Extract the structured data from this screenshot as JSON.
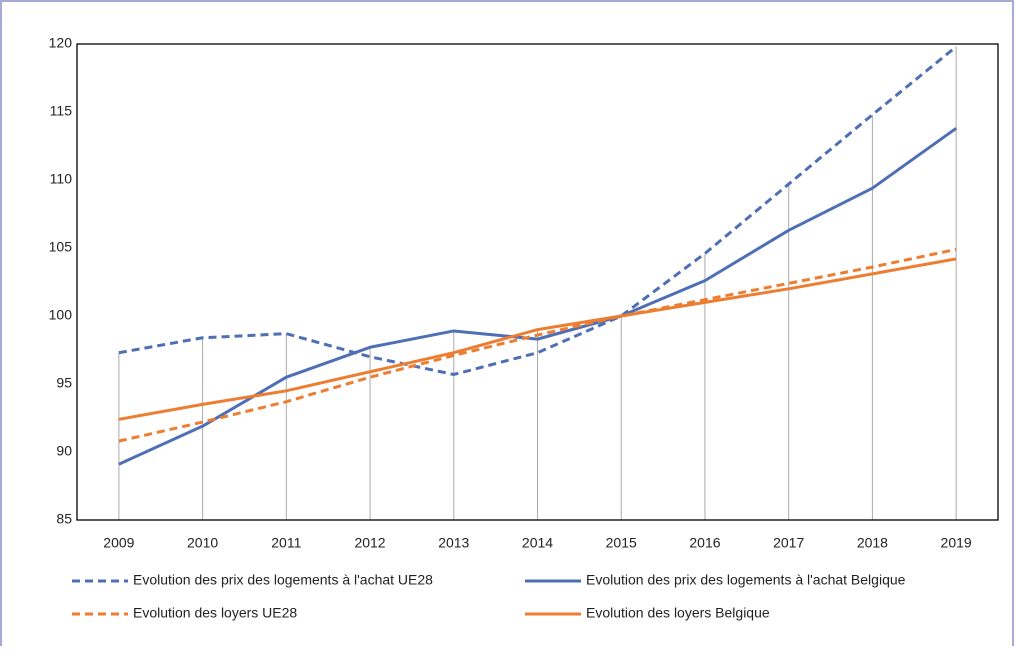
{
  "chart_data": {
    "type": "line",
    "categories": [
      "2009",
      "2010",
      "2011",
      "2012",
      "2013",
      "2014",
      "2015",
      "2016",
      "2017",
      "2018",
      "2019"
    ],
    "series": [
      {
        "name": "Evolution des prix des logements à l'achat UE28",
        "color": "#4e6fb5",
        "dashed": true,
        "values": [
          97.3,
          98.4,
          98.7,
          97.0,
          95.7,
          97.3,
          100,
          104.6,
          109.7,
          114.8,
          119.8
        ]
      },
      {
        "name": "Evolution des prix des logements à l'achat Belgique",
        "color": "#4e6fb5",
        "dashed": false,
        "values": [
          89.1,
          91.9,
          95.5,
          97.7,
          98.9,
          98.3,
          100,
          102.6,
          106.3,
          109.4,
          113.8
        ]
      },
      {
        "name": "Evolution des loyers UE28",
        "color": "#ed7d31",
        "dashed": true,
        "values": [
          90.8,
          92.2,
          93.7,
          95.5,
          97.1,
          98.6,
          100,
          101.2,
          102.4,
          103.6,
          104.9
        ]
      },
      {
        "name": "Evolution des loyers Belgique",
        "color": "#ed7d31",
        "dashed": false,
        "values": [
          92.4,
          93.5,
          94.5,
          95.9,
          97.3,
          99.0,
          100,
          101.0,
          102.0,
          103.1,
          104.2
        ]
      }
    ],
    "ylim": [
      85,
      120
    ],
    "yticks": [
      85,
      90,
      95,
      100,
      105,
      110,
      115,
      120
    ],
    "drop_lines": true,
    "grid": false,
    "legend": "bottom"
  }
}
